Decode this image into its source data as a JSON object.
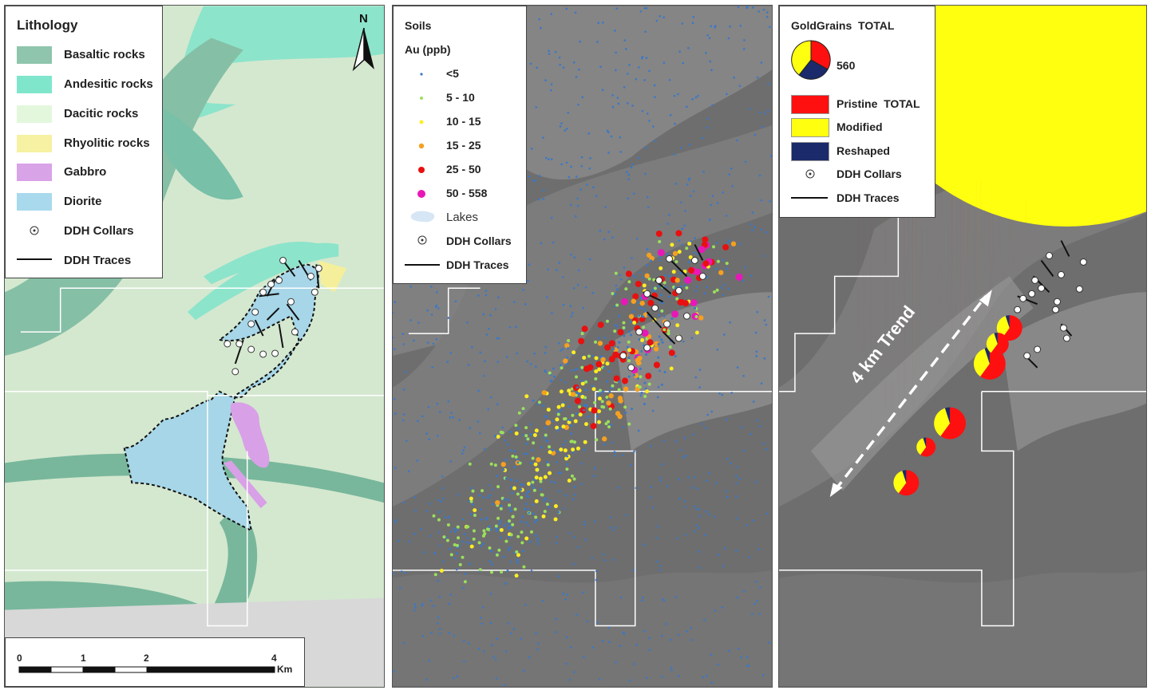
{
  "panel1": {
    "legend_title": "Lithology",
    "items": [
      {
        "label": "Basaltic rocks",
        "color": "#8fc4ad"
      },
      {
        "label": "Andesitic rocks",
        "color": "#7fe6cc"
      },
      {
        "label": "Dacitic rocks",
        "color": "#e3f7dd"
      },
      {
        "label": "Rhyolitic rocks",
        "color": "#f6f1a3"
      },
      {
        "label": "Gabbro",
        "color": "#d9a3e8"
      },
      {
        "label": "Diorite",
        "color": "#a9d9ec"
      },
      {
        "label": "DDH Collars",
        "icon": "collar-icon"
      },
      {
        "label": "DDH Traces",
        "icon": "trace-line-icon"
      }
    ],
    "north_label": "N",
    "scale": {
      "ticks": [
        "0",
        "1",
        "2",
        "4"
      ],
      "unit": "Km"
    }
  },
  "panel2": {
    "legend_title": "Soils",
    "subtitle": "Au (ppb)",
    "items": [
      {
        "label": "<5",
        "color": "#3a78c8"
      },
      {
        "label": "5 - 10",
        "color": "#9be05c"
      },
      {
        "label": "10 - 15",
        "color": "#ffee22"
      },
      {
        "label": "15 - 25",
        "color": "#f5a020"
      },
      {
        "label": "25 - 50",
        "color": "#e81010"
      },
      {
        "label": "50 - 558",
        "color": "#e818b8"
      },
      {
        "label": "Lakes",
        "icon": "lake-icon"
      },
      {
        "label": "DDH Collars",
        "icon": "collar-icon"
      },
      {
        "label": "DDH Traces",
        "icon": "trace-line-icon"
      }
    ]
  },
  "panel3": {
    "legend_title": "GoldGrains  TOTAL",
    "pie_value": "560",
    "items": [
      {
        "label": "Pristine  TOTAL",
        "color": "#ff1010"
      },
      {
        "label": "Modified",
        "color": "#ffff10"
      },
      {
        "label": "Reshaped",
        "color": "#1a2a6a"
      },
      {
        "label": "DDH Collars",
        "icon": "collar-icon"
      },
      {
        "label": "DDH Traces",
        "icon": "trace-line-icon"
      }
    ],
    "trend_label": "4 km Trend"
  }
}
